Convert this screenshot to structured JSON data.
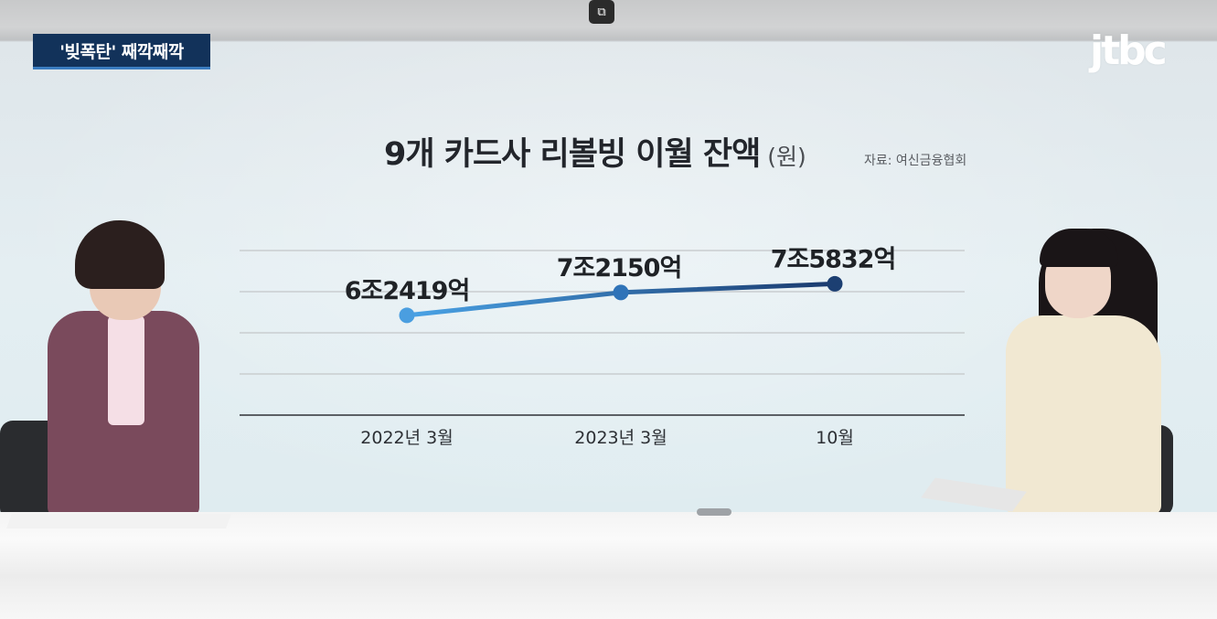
{
  "video": {
    "pip_icon": "picture-in-picture-icon",
    "caption": "'빚폭탄' 째깍째깍",
    "logo": "jtbc"
  },
  "chart_data": {
    "type": "line",
    "title": "9개 카드사 리볼빙 이월 잔액",
    "unit": "(원)",
    "source": "자료: 여신금융협회",
    "categories": [
      "2022년 3월",
      "2023년 3월",
      "10월"
    ],
    "series": [
      {
        "values": [
          62419,
          72150,
          75832
        ],
        "value_labels": [
          "6조2419억",
          "7조2150억",
          "7조5832억"
        ],
        "colors": [
          "#4a9ee0",
          "#2f73b8",
          "#1c3f72"
        ]
      }
    ],
    "ylim": [
      20000,
      90000
    ],
    "grid": true,
    "legend": "none"
  },
  "colors": {
    "caption_bg": "#12325a",
    "line_start": "#4aa3e6",
    "line_end": "#1a3a6e",
    "grid": "#c9cdd0",
    "axis": "#5c6065"
  }
}
